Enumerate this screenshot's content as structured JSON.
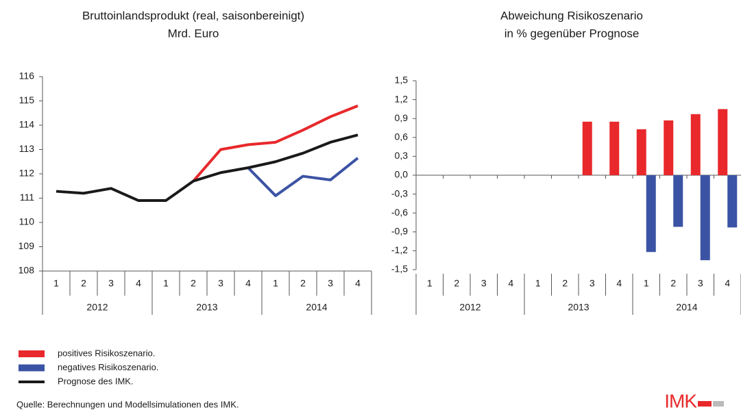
{
  "chart_data": [
    {
      "type": "line",
      "title": "Bruttoinlandsprodukt (real, saisonbereinigt)",
      "subtitle": "Mrd. Euro",
      "categories": [
        "1",
        "2",
        "3",
        "4",
        "1",
        "2",
        "3",
        "4",
        "1",
        "2",
        "3",
        "4"
      ],
      "year_groups": [
        "2012",
        "2013",
        "2014"
      ],
      "series": [
        {
          "name": "positives Risikoszenario.",
          "color": "#e8282b",
          "values": [
            null,
            null,
            null,
            null,
            null,
            111.7,
            113.0,
            113.2,
            113.3,
            113.8,
            114.35,
            114.8
          ]
        },
        {
          "name": "negatives Risikoszenario.",
          "color": "#3b53a4",
          "values": [
            null,
            null,
            null,
            null,
            null,
            null,
            null,
            112.25,
            111.1,
            111.9,
            111.75,
            112.65
          ]
        },
        {
          "name": "Prognose des IMK.",
          "color": "#1a1a1a",
          "values": [
            111.28,
            111.2,
            111.4,
            110.9,
            110.9,
            111.7,
            112.05,
            112.25,
            112.5,
            112.85,
            113.3,
            113.6
          ]
        }
      ],
      "ylim": [
        108,
        116
      ],
      "yticks": [
        108,
        109,
        110,
        111,
        112,
        113,
        114,
        115,
        116
      ]
    },
    {
      "type": "bar",
      "title": "Abweichung Risikoszenario",
      "subtitle": "in % gegenüber Prognose",
      "categories": [
        "1",
        "2",
        "3",
        "4",
        "1",
        "2",
        "3",
        "4",
        "1",
        "2",
        "3",
        "4"
      ],
      "year_groups": [
        "2012",
        "2013",
        "2014"
      ],
      "series": [
        {
          "color": "#e8282b",
          "values": [
            null,
            null,
            null,
            null,
            null,
            null,
            0.85,
            0.85,
            0.73,
            0.87,
            0.97,
            1.05
          ]
        },
        {
          "color": "#3b53a4",
          "values": [
            null,
            null,
            null,
            null,
            null,
            null,
            null,
            null,
            -1.22,
            -0.82,
            -1.35,
            -0.83
          ]
        }
      ],
      "ylim": [
        -1.5,
        1.5
      ],
      "yticks": [
        {
          "value": -1.5,
          "label": "-1,5"
        },
        {
          "value": -1.2,
          "label": "-1,2"
        },
        {
          "value": -0.9,
          "label": "-0,9"
        },
        {
          "value": -0.6,
          "label": "-0,6"
        },
        {
          "value": -0.3,
          "label": "-0,3"
        },
        {
          "value": 0,
          "label": "0,0"
        },
        {
          "value": 0.3,
          "label": "0,3"
        },
        {
          "value": 0.6,
          "label": "0,6"
        },
        {
          "value": 0.9,
          "label": "0,9"
        },
        {
          "value": 1.2,
          "label": "1,2"
        },
        {
          "value": 1.5,
          "label": "1,5"
        }
      ]
    }
  ],
  "source": "Quelle: Berechnungen und Modellsimulationen des IMK.",
  "logo": "IMK"
}
